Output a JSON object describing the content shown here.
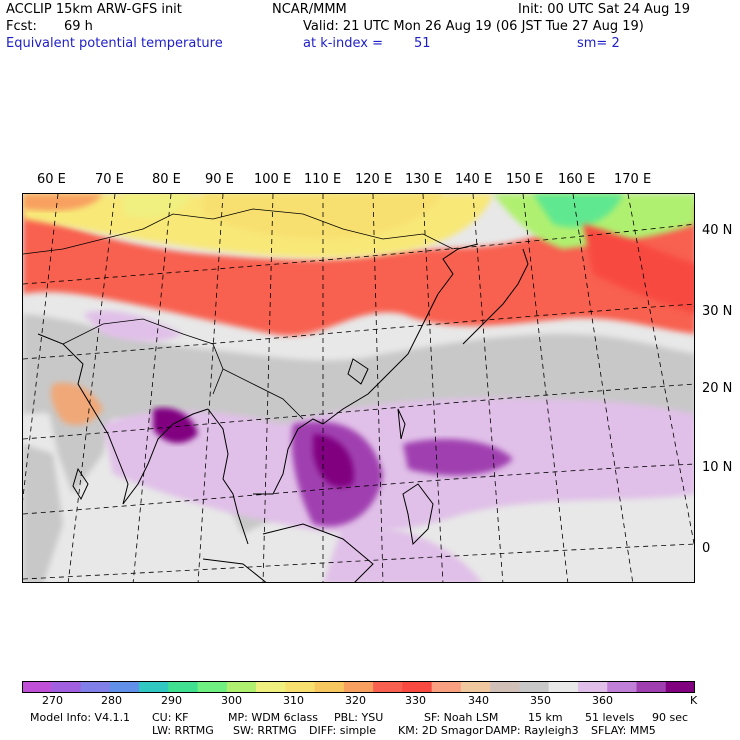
{
  "header": {
    "model": "ACCLIP 15km ARW-GFS init",
    "center": "NCAR/MMM",
    "init": "Init: 00 UTC Sat 24 Aug 19",
    "fcst_label": "Fcst:",
    "fcst_value": "69 h",
    "valid": "Valid: 21 UTC Mon 26 Aug 19 (06 JST Tue 27 Aug 19)",
    "field": "Equivalent potential temperature",
    "level": "at k-index =",
    "level_value": "51",
    "smooth": "sm= 2"
  },
  "map": {
    "lon_labels": [
      "60 E",
      "70 E",
      "80 E",
      "90 E",
      "100 E",
      "110 E",
      "120 E",
      "130 E",
      "140 E",
      "150 E",
      "160 E",
      "170 E"
    ],
    "lat_labels": [
      "40 N",
      "30 N",
      "20 N",
      "10 N",
      "0"
    ]
  },
  "colorbar": {
    "colors": [
      "#c050d8",
      "#a060e0",
      "#8080e8",
      "#6090e8",
      "#30c8c0",
      "#40e090",
      "#70f080",
      "#b0f070",
      "#f0f080",
      "#f8e070",
      "#f8c860",
      "#f8a060",
      "#f86050",
      "#f84a40",
      "#f8a080",
      "#f0c8a0",
      "#d0c0b8",
      "#c8c8c8",
      "#e8e8e8",
      "#e0c0e8",
      "#c080d8",
      "#a040b0",
      "#800080"
    ],
    "tick_labels": [
      "270",
      "280",
      "290",
      "300",
      "310",
      "320",
      "330",
      "340",
      "350",
      "360"
    ],
    "unit": "K"
  },
  "footer": {
    "line1": [
      "Model Info: V4.1.1",
      "CU: KF",
      "MP: WDM 6class",
      "PBL: YSU",
      "SF: Noah LSM",
      "15 km",
      "51 levels",
      "90 sec"
    ],
    "line2": [
      "LW: RRTMG",
      "SW: RRTMG",
      "DIFF: simple",
      "KM: 2D Smagor",
      "DAMP: Rayleigh3",
      "SFLAY: MM5"
    ]
  }
}
